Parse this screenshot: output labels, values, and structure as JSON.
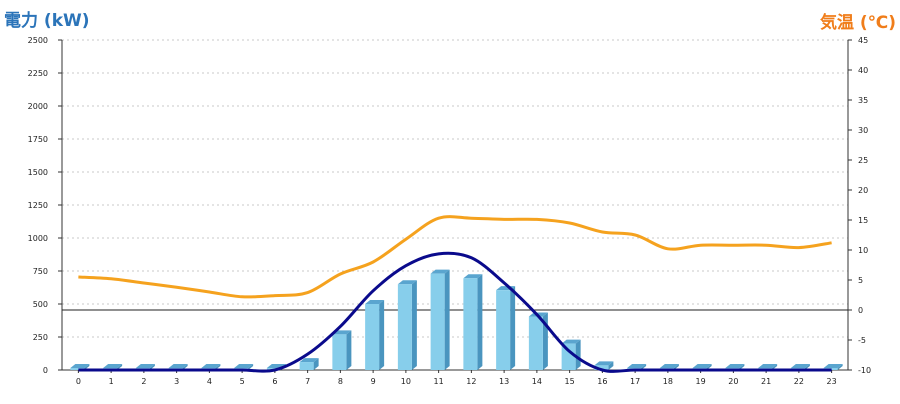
{
  "chart_data": {
    "type": "bar",
    "left_axis_label": "電力 (kW)",
    "right_axis_label": "気温 (℃)",
    "x": [
      0,
      1,
      2,
      3,
      4,
      5,
      6,
      7,
      8,
      9,
      10,
      11,
      12,
      13,
      14,
      15,
      16,
      17,
      18,
      19,
      20,
      21,
      22,
      23
    ],
    "x_tick_labels": [
      "0",
      "1",
      "2",
      "3",
      "4",
      "5",
      "6",
      "7",
      "8",
      "9",
      "10",
      "11",
      "12",
      "13",
      "14",
      "15",
      "16",
      "17",
      "18",
      "19",
      "20",
      "21",
      "22",
      "23"
    ],
    "y_left_range": [
      0,
      2500
    ],
    "y_left_ticks": [
      "0",
      "250",
      "500",
      "750",
      "1000",
      "1250",
      "1500",
      "1750",
      "2000",
      "2250",
      "2500"
    ],
    "y_right_range": [
      -10,
      45
    ],
    "y_right_ticks": [
      "-10",
      "-5",
      "0",
      "5",
      "10",
      "15",
      "20",
      "25",
      "30",
      "35",
      "40",
      "45"
    ],
    "grid": "horizontal-dashed",
    "series": [
      {
        "type": "bar",
        "axis": "left",
        "color": "#87ceeb",
        "values": [
          15,
          15,
          15,
          15,
          15,
          15,
          15,
          60,
          270,
          500,
          650,
          730,
          695,
          605,
          405,
          200,
          35,
          15,
          15,
          15,
          15,
          15,
          15,
          15
        ]
      },
      {
        "type": "line",
        "axis": "left",
        "color": "#0a0a8c",
        "values": [
          0,
          0,
          0,
          0,
          0,
          0,
          0,
          120,
          330,
          600,
          790,
          880,
          850,
          660,
          420,
          140,
          0,
          0,
          0,
          0,
          0,
          0,
          0,
          0
        ]
      },
      {
        "type": "line",
        "axis": "right",
        "color": "#f5a21e",
        "values": [
          5.5,
          5.2,
          4.5,
          3.8,
          3.0,
          2.2,
          2.4,
          2.9,
          6.0,
          8.0,
          11.8,
          15.3,
          15.3,
          15.1,
          15.1,
          14.5,
          13.0,
          12.5,
          10.2,
          10.8,
          10.8,
          10.8,
          10.4,
          11.2
        ]
      }
    ]
  }
}
